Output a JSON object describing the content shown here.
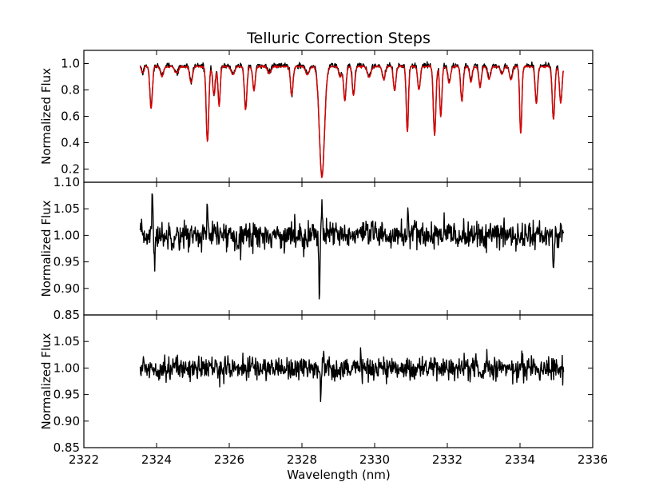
{
  "chart_data": {
    "type": "line",
    "title": "Telluric Correction Steps",
    "xlabel": "Wavelength (nm)",
    "xlim": [
      2322,
      2336
    ],
    "xticks": [
      2322,
      2324,
      2326,
      2328,
      2330,
      2332,
      2334,
      2336
    ],
    "colors": {
      "black": "#000000",
      "red": "#dd0000"
    },
    "panels": [
      {
        "ylabel": "Normalized Flux",
        "ylim": [
          0.1,
          1.1
        ],
        "yticks": [
          "0.2",
          "0.4",
          "0.6",
          "0.8",
          "1.0"
        ],
        "baseline": 0.985,
        "noise": 0.01,
        "absorption_lines": [
          {
            "x": 2323.62,
            "depth": 0.05,
            "width": 0.03
          },
          {
            "x": 2323.85,
            "depth": 0.32,
            "width": 0.035
          },
          {
            "x": 2324.15,
            "depth": 0.08,
            "width": 0.04
          },
          {
            "x": 2324.55,
            "depth": 0.05,
            "width": 0.05
          },
          {
            "x": 2324.95,
            "depth": 0.12,
            "width": 0.04
          },
          {
            "x": 2325.4,
            "depth": 0.57,
            "width": 0.035
          },
          {
            "x": 2325.58,
            "depth": 0.22,
            "width": 0.035
          },
          {
            "x": 2325.72,
            "depth": 0.3,
            "width": 0.03
          },
          {
            "x": 2326.1,
            "depth": 0.06,
            "width": 0.05
          },
          {
            "x": 2326.45,
            "depth": 0.33,
            "width": 0.035
          },
          {
            "x": 2326.68,
            "depth": 0.18,
            "width": 0.035
          },
          {
            "x": 2327.1,
            "depth": 0.05,
            "width": 0.05
          },
          {
            "x": 2327.72,
            "depth": 0.22,
            "width": 0.035
          },
          {
            "x": 2328.15,
            "depth": 0.06,
            "width": 0.05
          },
          {
            "x": 2328.55,
            "depth": 0.84,
            "width": 0.07
          },
          {
            "x": 2329.05,
            "depth": 0.08,
            "width": 0.04
          },
          {
            "x": 2329.18,
            "depth": 0.26,
            "width": 0.035
          },
          {
            "x": 2329.42,
            "depth": 0.22,
            "width": 0.035
          },
          {
            "x": 2329.85,
            "depth": 0.08,
            "width": 0.05
          },
          {
            "x": 2330.25,
            "depth": 0.1,
            "width": 0.04
          },
          {
            "x": 2330.55,
            "depth": 0.18,
            "width": 0.035
          },
          {
            "x": 2330.9,
            "depth": 0.5,
            "width": 0.03
          },
          {
            "x": 2331.22,
            "depth": 0.18,
            "width": 0.035
          },
          {
            "x": 2331.65,
            "depth": 0.52,
            "width": 0.035
          },
          {
            "x": 2331.82,
            "depth": 0.38,
            "width": 0.03
          },
          {
            "x": 2332.05,
            "depth": 0.12,
            "width": 0.04
          },
          {
            "x": 2332.4,
            "depth": 0.26,
            "width": 0.035
          },
          {
            "x": 2332.65,
            "depth": 0.12,
            "width": 0.035
          },
          {
            "x": 2332.9,
            "depth": 0.16,
            "width": 0.035
          },
          {
            "x": 2333.15,
            "depth": 0.1,
            "width": 0.04
          },
          {
            "x": 2333.5,
            "depth": 0.06,
            "width": 0.04
          },
          {
            "x": 2333.75,
            "depth": 0.1,
            "width": 0.04
          },
          {
            "x": 2334.02,
            "depth": 0.51,
            "width": 0.03
          },
          {
            "x": 2334.45,
            "depth": 0.28,
            "width": 0.035
          },
          {
            "x": 2334.92,
            "depth": 0.4,
            "width": 0.035
          },
          {
            "x": 2335.12,
            "depth": 0.28,
            "width": 0.035
          }
        ]
      },
      {
        "ylabel": "Normalized Flux",
        "ylim": [
          0.85,
          1.1
        ],
        "yticks": [
          "0.85",
          "0.90",
          "0.95",
          "1.00",
          "1.05",
          "1.10"
        ],
        "baseline": 1.0,
        "noise": 0.013,
        "features": [
          {
            "x": 2323.88,
            "amp": 0.07,
            "width": 0.015
          },
          {
            "x": 2323.95,
            "amp": -0.055,
            "width": 0.015
          },
          {
            "x": 2325.4,
            "amp": 0.045,
            "width": 0.015
          },
          {
            "x": 2328.48,
            "amp": -0.1,
            "width": 0.015
          },
          {
            "x": 2328.55,
            "amp": 0.065,
            "width": 0.015
          },
          {
            "x": 2330.92,
            "amp": 0.055,
            "width": 0.015
          },
          {
            "x": 2334.92,
            "amp": -0.085,
            "width": 0.015
          }
        ]
      },
      {
        "ylabel": "Normalized Flux",
        "ylim": [
          0.85,
          1.1
        ],
        "yticks": [
          "0.85",
          "0.90",
          "0.95",
          "1.00",
          "1.05"
        ],
        "baseline": 1.0,
        "noise": 0.011,
        "features": [
          {
            "x": 2328.52,
            "amp": -0.06,
            "width": 0.015
          },
          {
            "x": 2328.6,
            "amp": 0.025,
            "width": 0.015
          }
        ]
      }
    ],
    "series": [
      {
        "panel": 0,
        "color_key": "black",
        "x_range": [
          2323.55,
          2335.2
        ]
      },
      {
        "panel": 0,
        "color_key": "red",
        "x_range": [
          2323.55,
          2335.2
        ]
      },
      {
        "panel": 1,
        "color_key": "black",
        "x_range": [
          2323.55,
          2335.2
        ]
      },
      {
        "panel": 2,
        "color_key": "black",
        "x_range": [
          2323.55,
          2335.2
        ]
      }
    ]
  }
}
